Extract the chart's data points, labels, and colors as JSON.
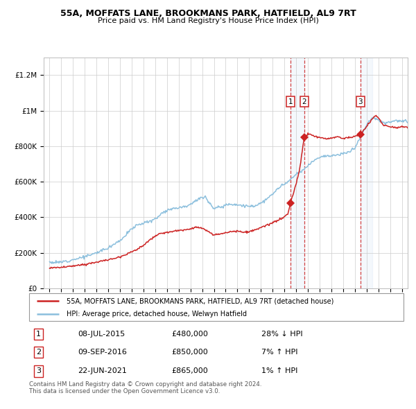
{
  "title": "55A, MOFFATS LANE, BROOKMANS PARK, HATFIELD, AL9 7RT",
  "subtitle": "Price paid vs. HM Land Registry's House Price Index (HPI)",
  "hpi_color": "#8bbfdd",
  "price_color": "#cc2222",
  "dashed_line_color": "#cc2222",
  "legend_label_red": "55A, MOFFATS LANE, BROOKMANS PARK, HATFIELD, AL9 7RT (detached house)",
  "legend_label_blue": "HPI: Average price, detached house, Welwyn Hatfield",
  "trans_years": [
    2015.52,
    2016.69,
    2021.47
  ],
  "trans_prices": [
    480000,
    850000,
    865000
  ],
  "trans_labels": [
    "1",
    "2",
    "3"
  ],
  "table_data": [
    [
      "1",
      "08-JUL-2015",
      "£480,000",
      "28% ↓ HPI"
    ],
    [
      "2",
      "09-SEP-2016",
      "£850,000",
      "7% ↑ HPI"
    ],
    [
      "3",
      "22-JUN-2021",
      "£865,000",
      "1% ↑ HPI"
    ]
  ],
  "footer": "Contains HM Land Registry data © Crown copyright and database right 2024.\nThis data is licensed under the Open Government Licence v3.0.",
  "ylim": [
    0,
    1300000
  ],
  "xlim_start": 1994.5,
  "xlim_end": 2025.5,
  "hpi_checkpoints": [
    [
      1995.0,
      148000
    ],
    [
      1995.5,
      145000
    ],
    [
      1996.0,
      148000
    ],
    [
      1996.5,
      155000
    ],
    [
      1997.0,
      162000
    ],
    [
      1997.5,
      170000
    ],
    [
      1998.0,
      178000
    ],
    [
      1998.5,
      188000
    ],
    [
      1999.0,
      200000
    ],
    [
      1999.5,
      215000
    ],
    [
      2000.0,
      228000
    ],
    [
      2000.5,
      250000
    ],
    [
      2001.0,
      270000
    ],
    [
      2001.5,
      300000
    ],
    [
      2002.0,
      335000
    ],
    [
      2002.5,
      358000
    ],
    [
      2003.0,
      368000
    ],
    [
      2003.5,
      375000
    ],
    [
      2004.0,
      390000
    ],
    [
      2004.5,
      420000
    ],
    [
      2005.0,
      440000
    ],
    [
      2005.5,
      450000
    ],
    [
      2006.0,
      455000
    ],
    [
      2006.5,
      460000
    ],
    [
      2007.0,
      475000
    ],
    [
      2007.5,
      495000
    ],
    [
      2008.0,
      510000
    ],
    [
      2008.25,
      520000
    ],
    [
      2008.5,
      490000
    ],
    [
      2009.0,
      450000
    ],
    [
      2009.5,
      455000
    ],
    [
      2010.0,
      470000
    ],
    [
      2010.5,
      475000
    ],
    [
      2011.0,
      470000
    ],
    [
      2011.5,
      465000
    ],
    [
      2012.0,
      460000
    ],
    [
      2012.5,
      465000
    ],
    [
      2013.0,
      480000
    ],
    [
      2013.5,
      500000
    ],
    [
      2014.0,
      530000
    ],
    [
      2014.5,
      565000
    ],
    [
      2015.0,
      585000
    ],
    [
      2015.5,
      610000
    ],
    [
      2016.0,
      640000
    ],
    [
      2016.5,
      660000
    ],
    [
      2016.69,
      670000
    ],
    [
      2017.0,
      690000
    ],
    [
      2017.5,
      720000
    ],
    [
      2018.0,
      740000
    ],
    [
      2018.5,
      745000
    ],
    [
      2019.0,
      745000
    ],
    [
      2019.5,
      750000
    ],
    [
      2020.0,
      755000
    ],
    [
      2020.5,
      770000
    ],
    [
      2021.0,
      790000
    ],
    [
      2021.47,
      850000
    ],
    [
      2022.0,
      920000
    ],
    [
      2022.5,
      960000
    ],
    [
      2023.0,
      950000
    ],
    [
      2023.5,
      930000
    ],
    [
      2024.0,
      935000
    ],
    [
      2024.5,
      945000
    ],
    [
      2025.0,
      940000
    ],
    [
      2025.5,
      935000
    ]
  ],
  "red_checkpoints": [
    [
      1995.0,
      115000
    ],
    [
      1996.0,
      118000
    ],
    [
      1997.0,
      125000
    ],
    [
      1998.0,
      135000
    ],
    [
      1999.0,
      148000
    ],
    [
      2000.0,
      160000
    ],
    [
      2001.0,
      178000
    ],
    [
      2002.0,
      205000
    ],
    [
      2003.0,
      240000
    ],
    [
      2003.5,
      270000
    ],
    [
      2004.0,
      295000
    ],
    [
      2004.5,
      308000
    ],
    [
      2005.0,
      315000
    ],
    [
      2005.5,
      320000
    ],
    [
      2006.0,
      325000
    ],
    [
      2006.5,
      328000
    ],
    [
      2007.0,
      335000
    ],
    [
      2007.5,
      345000
    ],
    [
      2008.0,
      338000
    ],
    [
      2008.5,
      318000
    ],
    [
      2009.0,
      300000
    ],
    [
      2009.5,
      305000
    ],
    [
      2010.0,
      315000
    ],
    [
      2010.5,
      320000
    ],
    [
      2011.0,
      322000
    ],
    [
      2011.5,
      315000
    ],
    [
      2012.0,
      318000
    ],
    [
      2012.5,
      328000
    ],
    [
      2013.0,
      340000
    ],
    [
      2013.5,
      355000
    ],
    [
      2014.0,
      368000
    ],
    [
      2014.5,
      385000
    ],
    [
      2015.0,
      400000
    ],
    [
      2015.3,
      420000
    ],
    [
      2015.52,
      480000
    ],
    [
      2015.6,
      500000
    ],
    [
      2015.8,
      540000
    ],
    [
      2016.0,
      590000
    ],
    [
      2016.3,
      670000
    ],
    [
      2016.69,
      850000
    ],
    [
      2017.0,
      870000
    ],
    [
      2017.5,
      858000
    ],
    [
      2018.0,
      848000
    ],
    [
      2018.5,
      840000
    ],
    [
      2019.0,
      845000
    ],
    [
      2019.5,
      852000
    ],
    [
      2020.0,
      845000
    ],
    [
      2020.5,
      848000
    ],
    [
      2021.0,
      855000
    ],
    [
      2021.47,
      865000
    ],
    [
      2022.0,
      910000
    ],
    [
      2022.5,
      955000
    ],
    [
      2022.8,
      975000
    ],
    [
      2023.0,
      958000
    ],
    [
      2023.5,
      915000
    ],
    [
      2024.0,
      910000
    ],
    [
      2024.5,
      905000
    ],
    [
      2025.0,
      910000
    ],
    [
      2025.5,
      905000
    ]
  ]
}
